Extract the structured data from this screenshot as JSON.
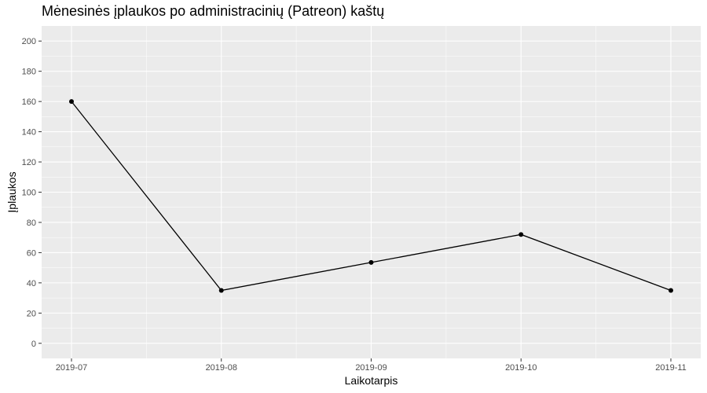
{
  "chart_data": {
    "type": "line",
    "title": "Mėnesinės įplaukos po administracinių (Patreon) kaštų",
    "xlabel": "Laikotarpis",
    "ylabel": "Įplaukos",
    "categories": [
      "2019-07",
      "2019-08",
      "2019-09",
      "2019-10",
      "2019-11"
    ],
    "series": [
      {
        "values": [
          160,
          35,
          53.5,
          72,
          35
        ]
      }
    ],
    "ylim": [
      -10,
      210
    ],
    "yticks": [
      0,
      20,
      40,
      60,
      80,
      100,
      120,
      140,
      160,
      180,
      200
    ],
    "grid": true,
    "legend": "none",
    "colors": {
      "panel": "#ebebeb",
      "grid": "#ffffff",
      "line": "#000000",
      "point": "#000000"
    }
  }
}
